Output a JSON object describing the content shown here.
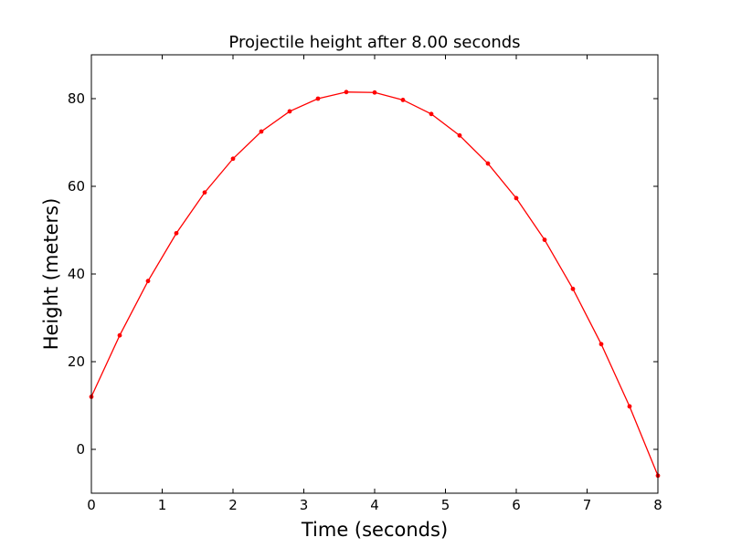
{
  "chart_data": {
    "type": "line",
    "title": "Projectile height after 8.00 seconds",
    "xlabel": "Time (seconds)",
    "ylabel": "Height (meters)",
    "xlim": [
      0,
      8
    ],
    "ylim": [
      -10,
      90
    ],
    "x_ticks": [
      "0",
      "1",
      "2",
      "3",
      "4",
      "5",
      "6",
      "7",
      "8"
    ],
    "y_ticks": [
      "0",
      "20",
      "40",
      "60",
      "80"
    ],
    "grid": false,
    "legend": "none",
    "series": [
      {
        "color": "#ff0000",
        "marker": "dot",
        "x": [
          0,
          0.4,
          0.8,
          1.2,
          1.6,
          2.0,
          2.4,
          2.8,
          3.2,
          3.6,
          4.0,
          4.4,
          4.8,
          5.2,
          5.6,
          6.0,
          6.4,
          6.8,
          7.2,
          7.6,
          8.0
        ],
        "y": [
          12.0,
          26.0,
          38.4,
          49.3,
          58.6,
          66.3,
          72.5,
          77.1,
          80.0,
          81.5,
          81.4,
          79.7,
          76.5,
          71.6,
          65.2,
          57.3,
          47.8,
          36.6,
          24.0,
          9.8,
          -6.0
        ]
      }
    ]
  }
}
